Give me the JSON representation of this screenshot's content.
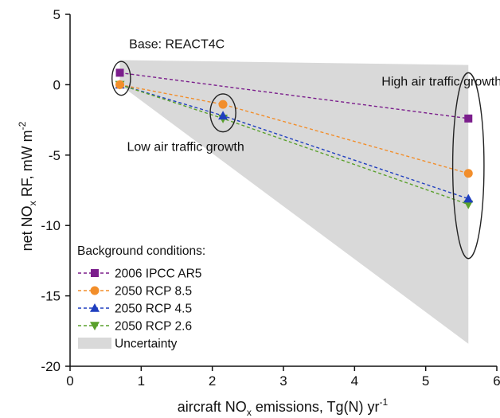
{
  "chart_data": {
    "type": "scatter",
    "xlabel": {
      "pre": "aircraft NO",
      "sub": "x",
      "post": " emissions, Tg(N) yr",
      "sup": "-1"
    },
    "ylabel": {
      "pre": "net NO",
      "sub": "x",
      "post": " RF, mW m",
      "sup": "-2"
    },
    "xlim": [
      0,
      6
    ],
    "ylim": [
      -20,
      5
    ],
    "xticks": [
      0,
      1,
      2,
      3,
      4,
      5,
      6
    ],
    "yticks": [
      5,
      0,
      -5,
      -10,
      -15,
      -20
    ],
    "grid": false,
    "legend_title": "Background conditions:",
    "legend_position": "bottom-left",
    "series": [
      {
        "name": "2006 IPCC AR5",
        "color": "#7b1e8c",
        "marker": "square",
        "points": [
          {
            "x": 0.7,
            "y": 0.85
          },
          {
            "x": 5.6,
            "y": -2.4
          }
        ]
      },
      {
        "name": "2050 RCP 8.5",
        "color": "#f28e2b",
        "marker": "circle",
        "points": [
          {
            "x": 0.7,
            "y": 0.0
          },
          {
            "x": 2.15,
            "y": -1.4
          },
          {
            "x": 5.6,
            "y": -6.3
          }
        ]
      },
      {
        "name": "2050 RCP 4.5",
        "color": "#1f3fbf",
        "marker": "triangle-up",
        "points": [
          {
            "x": 0.7,
            "y": 0.0
          },
          {
            "x": 2.15,
            "y": -2.2
          },
          {
            "x": 5.6,
            "y": -8.1
          }
        ]
      },
      {
        "name": "2050 RCP 2.6",
        "color": "#5aa02c",
        "marker": "triangle-down",
        "points": [
          {
            "x": 0.7,
            "y": 0.0
          },
          {
            "x": 2.15,
            "y": -2.4
          },
          {
            "x": 5.6,
            "y": -8.5
          }
        ]
      }
    ],
    "uncertainty": {
      "name": "Uncertainty",
      "color": "#d9d9d9",
      "polygon": [
        {
          "x": 0.7,
          "y": 1.75
        },
        {
          "x": 5.6,
          "y": 1.4
        },
        {
          "x": 5.6,
          "y": -18.4
        },
        {
          "x": 0.7,
          "y": 0.0
        }
      ]
    },
    "annotations": [
      {
        "text": "Base: REACT4C",
        "x": 0.83,
        "y": 2.6
      },
      {
        "text": "High air traffic growth",
        "x": 4.38,
        "y": -0.05
      },
      {
        "text": "Low air traffic growth",
        "x": 0.8,
        "y": -4.7
      }
    ],
    "highlight_ellipses": [
      {
        "cx": 0.72,
        "cy": 0.45,
        "rx": 0.13,
        "ry": 1.2
      },
      {
        "cx": 2.15,
        "cy": -2.0,
        "rx": 0.18,
        "ry": 1.35
      },
      {
        "cx": 5.6,
        "cy": -5.75,
        "rx": 0.22,
        "ry": 6.6
      }
    ]
  }
}
